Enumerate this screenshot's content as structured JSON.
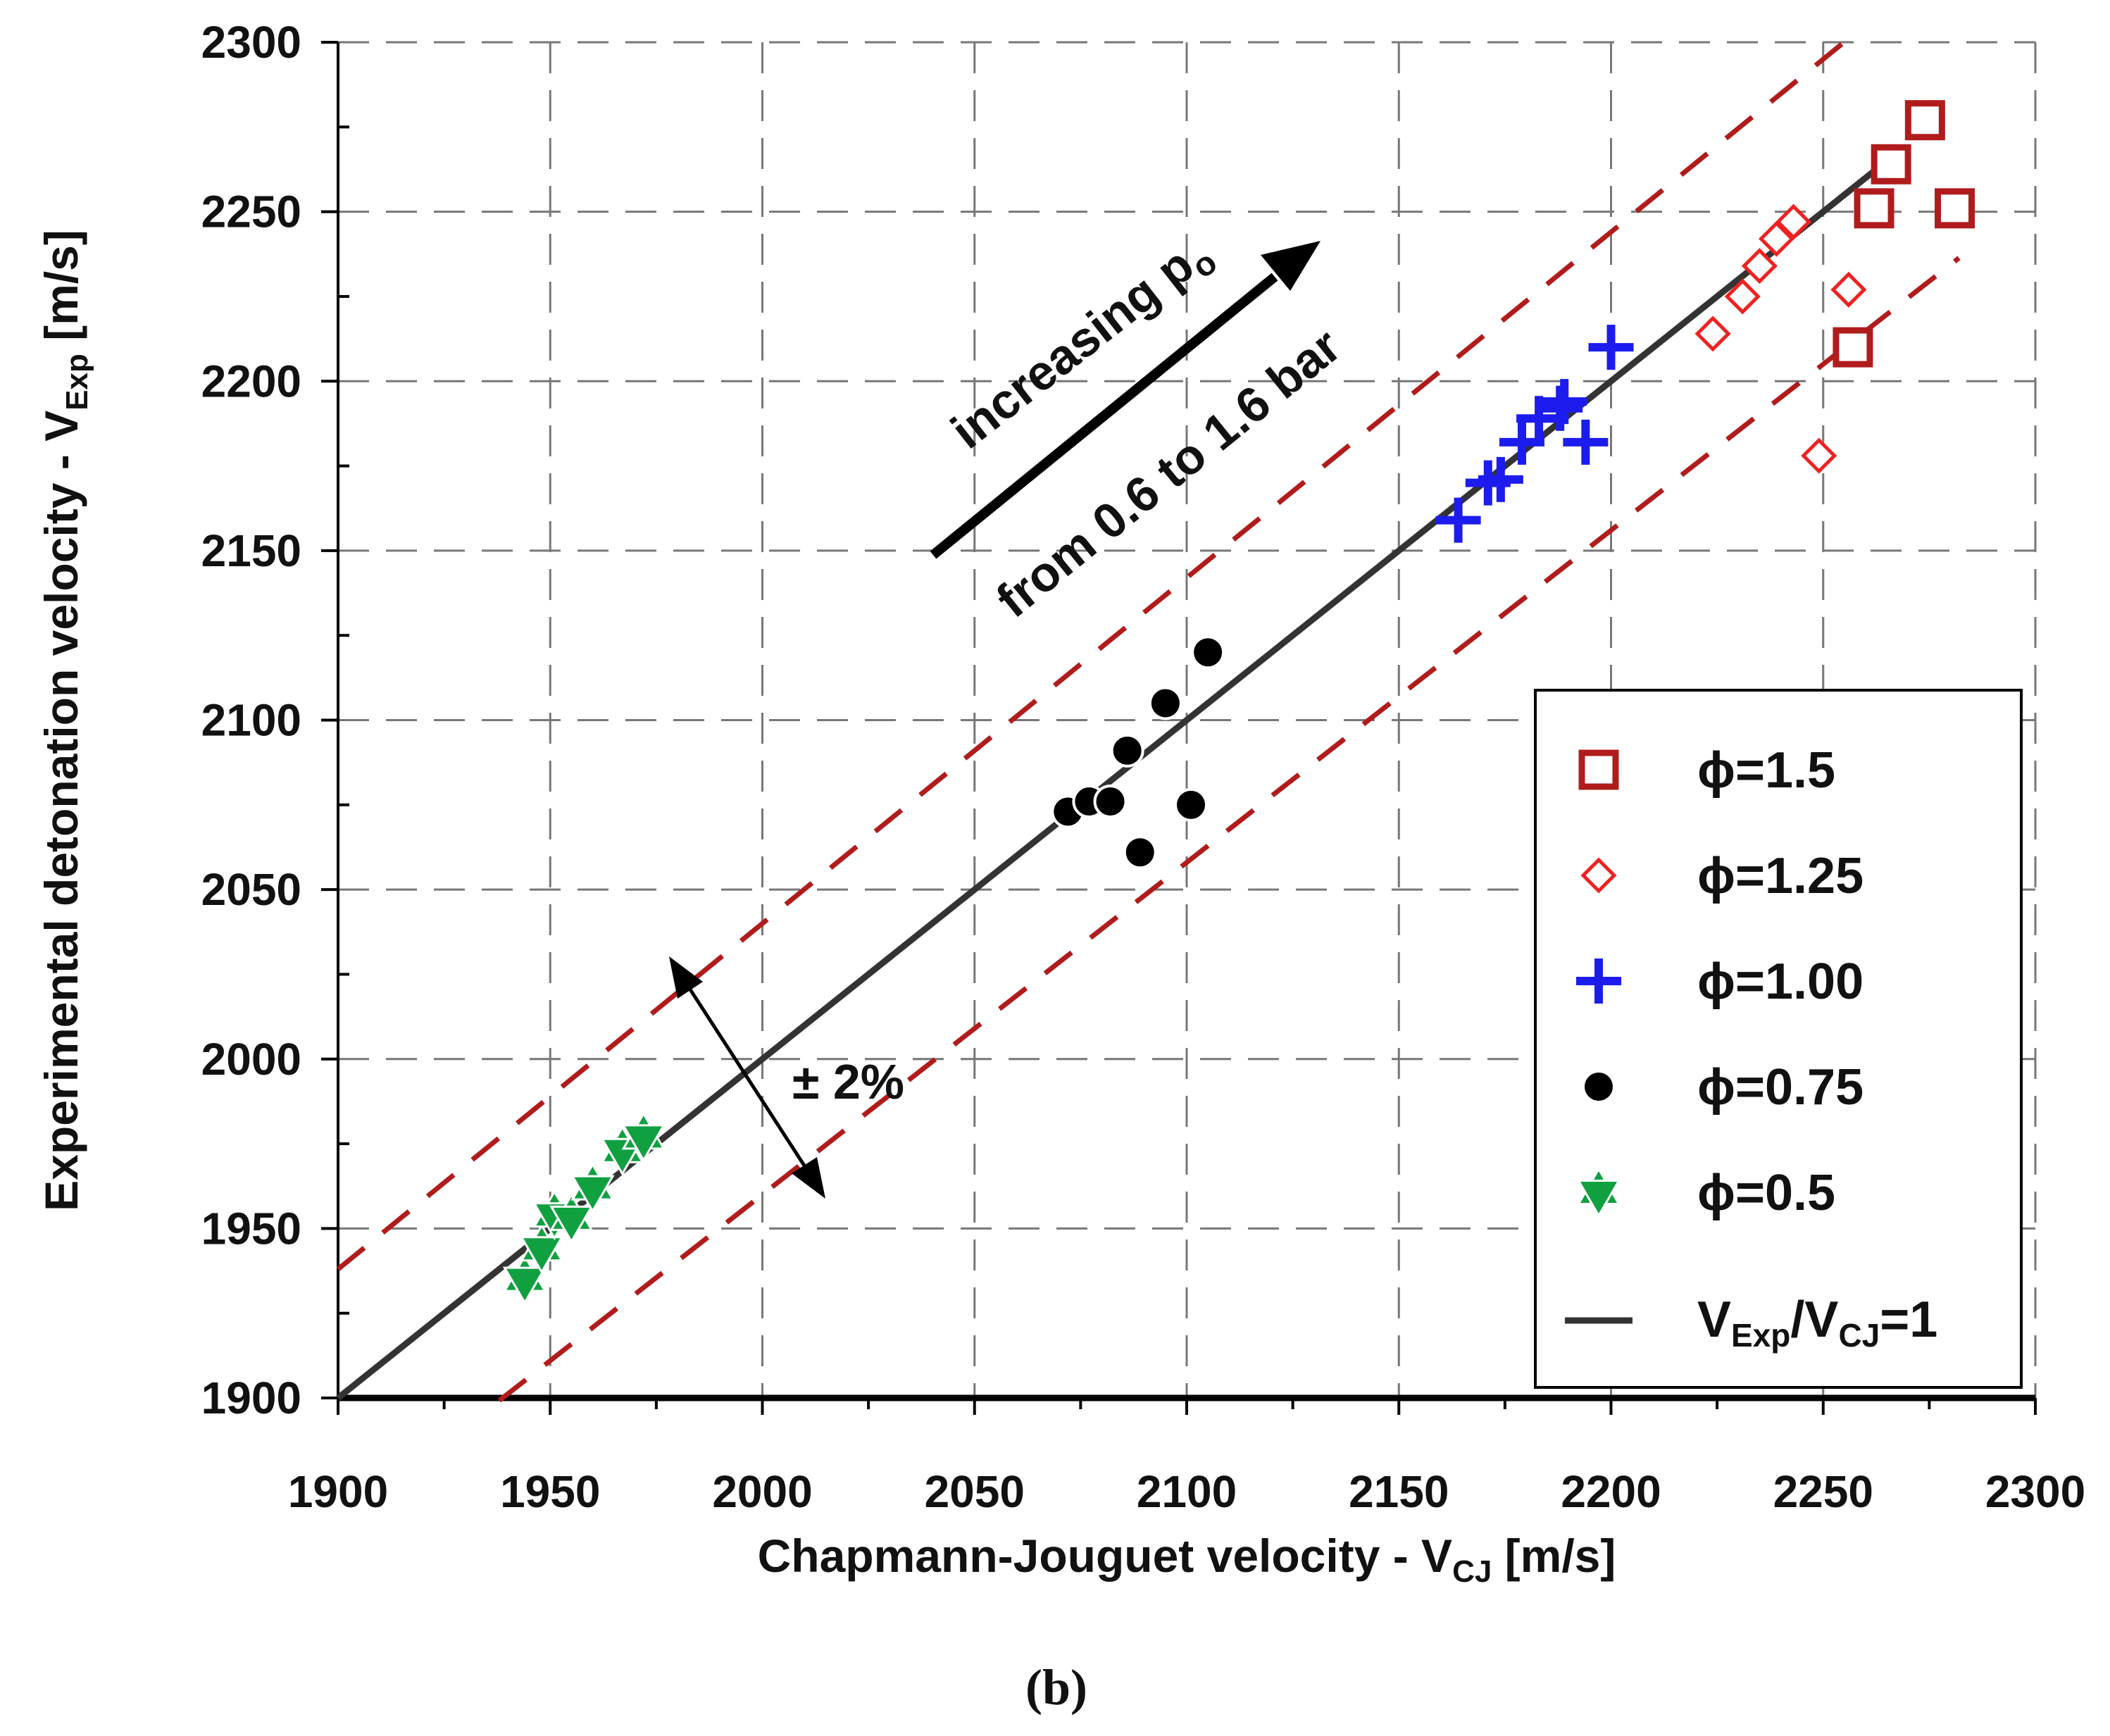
{
  "chart_data": {
    "type": "scatter",
    "xlabel": {
      "main": "Chapmann-Jouguet velocity - V",
      "sub": "CJ",
      "unit": " [m/s]"
    },
    "ylabel": {
      "main": "Experimental detonation velocity - V",
      "sub": "Exp",
      "unit": " [m/s]"
    },
    "xlim": [
      1900,
      2300
    ],
    "ylim": [
      1900,
      2300
    ],
    "xticks": [
      1900,
      1950,
      2000,
      2050,
      2100,
      2150,
      2200,
      2250,
      2300
    ],
    "yticks": [
      1900,
      1950,
      2000,
      2050,
      2100,
      2150,
      2200,
      2250,
      2300
    ],
    "grid": true,
    "caption": "(b)",
    "colors": {
      "phi15": "#b01c1c",
      "phi125": "#ee2222",
      "phi100": "#1c1cee",
      "phi075": "#000000",
      "phi05": "#10a040",
      "ideal": "#333333",
      "band": "#b01c1c"
    },
    "series": [
      {
        "name": "ϕ=1.5",
        "marker": "square",
        "color": "#b01c1c",
        "x": [
          2262,
          2266,
          2274,
          2281,
          2257
        ],
        "y": [
          2251,
          2264,
          2277,
          2251,
          2210
        ]
      },
      {
        "name": "ϕ=1.25",
        "marker": "diamond",
        "color": "#ee2222",
        "x": [
          2224,
          2231,
          2235,
          2239,
          2243,
          2256,
          2249
        ],
        "y": [
          2214,
          2225,
          2234,
          2242,
          2247,
          2227,
          2178
        ]
      },
      {
        "name": "ϕ=1.00",
        "marker": "plus",
        "color": "#1c1cee",
        "x": [
          2164,
          2171,
          2174,
          2179,
          2183,
          2188,
          2189,
          2194,
          2200
        ],
        "y": [
          2159,
          2170,
          2171,
          2182,
          2189,
          2192,
          2194,
          2182,
          2210
        ]
      },
      {
        "name": "ϕ=0.75",
        "marker": "circle",
        "color": "#000000",
        "x": [
          2072,
          2077,
          2082,
          2086,
          2089,
          2095,
          2101,
          2105
        ],
        "y": [
          2073,
          2076,
          2076,
          2091,
          2061,
          2105,
          2075,
          2120
        ]
      },
      {
        "name": "ϕ=0.5",
        "marker": "star",
        "color": "#10a040",
        "x": [
          1944,
          1948,
          1951,
          1955,
          1960,
          1967,
          1972
        ],
        "y": [
          1935,
          1944,
          1954,
          1953,
          1962,
          1973,
          1977
        ]
      }
    ],
    "reference_line": {
      "name": "V",
      "label_sub1": "Exp",
      "label_mid": "/V",
      "label_sub2": "CJ",
      "label_end": "=1",
      "ratio": 1.0
    },
    "tolerance_band": {
      "plus": 1.02,
      "minus": 0.98,
      "label": "± 2%"
    },
    "annotations": {
      "increasing_main": "increasing p",
      "increasing_sub": "o",
      "range_text": "from 0.6 to 1.6 bar"
    }
  }
}
